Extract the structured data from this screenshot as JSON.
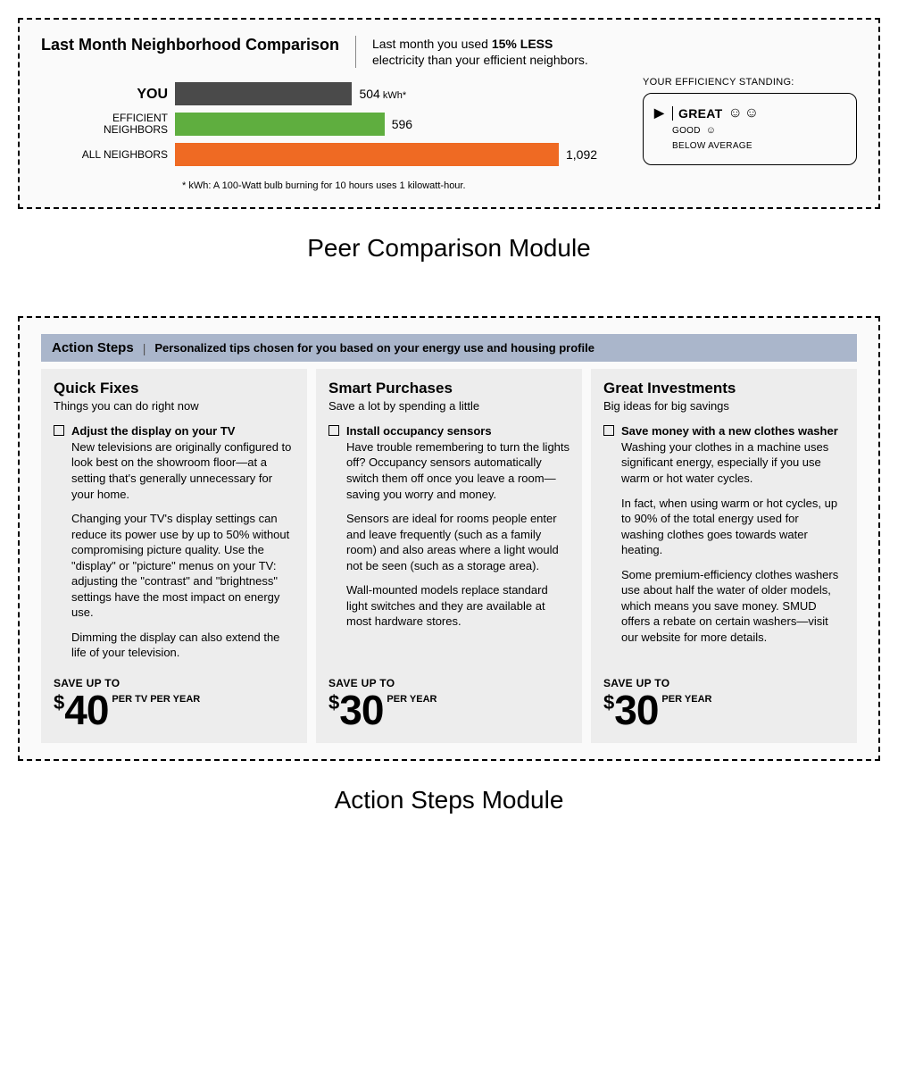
{
  "peer": {
    "title": "Last Month Neighborhood Comparison",
    "subtitle_pre": "Last month you used ",
    "subtitle_bold": "15% LESS",
    "subtitle_post": " electricity than your efficient neighbors.",
    "chart": {
      "type": "bar",
      "max_value": 1092,
      "track_full_pct": 86,
      "bars": [
        {
          "label": "YOU",
          "value": 504,
          "value_text": "504",
          "unit": " kWh*",
          "color": "#4a4a4a",
          "bold_label": true
        },
        {
          "label": "EFFICIENT\nNEIGHBORS",
          "value": 596,
          "value_text": "596",
          "unit": "",
          "color": "#5fae3f",
          "bold_label": false
        },
        {
          "label": "ALL NEIGHBORS",
          "value": 1092,
          "value_text": "1,092",
          "unit": "",
          "color": "#ef6a23",
          "bold_label": false
        }
      ],
      "footnote": "* kWh: A 100-Watt bulb burning for 10 hours uses 1 kilowatt-hour."
    },
    "standing": {
      "title": "YOUR EFFICIENCY STANDING:",
      "levels": [
        {
          "label": "GREAT",
          "smileys": "☺☺",
          "active": true
        },
        {
          "label": "GOOD",
          "smileys": "☺",
          "active": false
        },
        {
          "label": "BELOW AVERAGE",
          "smileys": "",
          "active": false
        }
      ]
    },
    "caption": "Peer Comparison Module"
  },
  "action": {
    "bar_title": "Action Steps",
    "bar_sub": "Personalized tips chosen for you based on your energy use and housing profile",
    "bar_bg": "#aab6cb",
    "columns": [
      {
        "heading": "Quick Fixes",
        "tagline": "Things you can do right now",
        "tip_title": "Adjust the display on your TV",
        "paras": [
          "New televisions are originally configured to look best on the showroom floor—at a setting that's generally unnecessary for your home.",
          "Changing your TV's display settings can reduce its power use by up to 50% without compromising picture quality. Use the \"display\" or \"picture\" menus on your TV: adjusting the \"contrast\" and \"brightness\" settings have the most impact on energy use.",
          "Dimming the display can also extend the life of your television."
        ],
        "save_label": "SAVE UP TO",
        "save_currency": "$",
        "save_amount": "40",
        "save_per": "PER TV PER YEAR"
      },
      {
        "heading": "Smart Purchases",
        "tagline": "Save a lot by spending a little",
        "tip_title": "Install occupancy sensors",
        "paras": [
          "Have trouble remembering to turn the lights off? Occupancy sensors automatically switch them off once you leave a room—saving you worry and money.",
          "Sensors are ideal for rooms people enter and leave frequently (such as a family room) and also areas where a light would not be seen (such as a storage area).",
          "Wall-mounted models replace standard light switches and they are available at most hardware stores."
        ],
        "save_label": "SAVE UP TO",
        "save_currency": "$",
        "save_amount": "30",
        "save_per": "PER YEAR"
      },
      {
        "heading": "Great Investments",
        "tagline": "Big ideas for big savings",
        "tip_title": "Save money with a new clothes washer",
        "paras": [
          "Washing your clothes in a machine uses significant energy, especially if you use warm or hot water cycles.",
          "In fact, when using warm or hot cycles, up to 90% of the total energy used for washing clothes goes towards water heating.",
          "Some premium-efficiency clothes washers use about half the water of older models, which means you save money.  SMUD offers a rebate on certain washers—visit our website for more details."
        ],
        "save_label": "SAVE UP TO",
        "save_currency": "$",
        "save_amount": "30",
        "save_per": "PER YEAR"
      }
    ],
    "col_bg": "#ededed",
    "caption": "Action Steps Module"
  }
}
